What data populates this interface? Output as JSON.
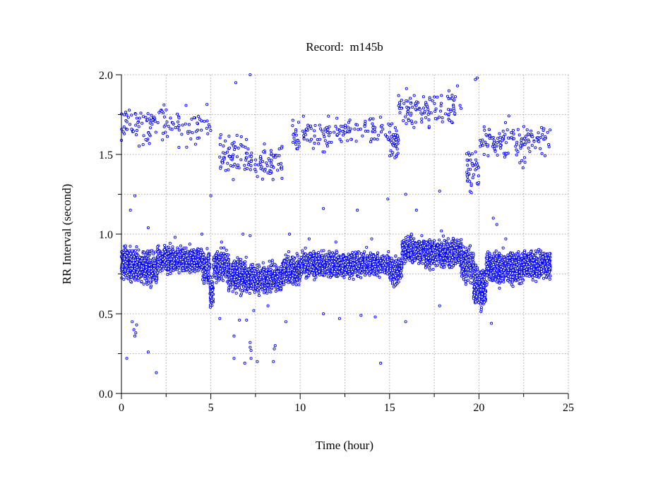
{
  "chart_data": {
    "type": "scatter",
    "title": "Record:  m145b",
    "xlabel": "Time (hour)",
    "ylabel": "RR Interval (second)",
    "xlim": [
      0,
      25
    ],
    "ylim": [
      0,
      2.0
    ],
    "xticks": [
      0,
      5,
      10,
      15,
      20,
      25
    ],
    "xtick_labels": [
      "0",
      "5",
      "10",
      "15",
      "20",
      "25"
    ],
    "yticks": [
      0.0,
      0.5,
      1.0,
      1.5,
      2.0
    ],
    "ytick_labels": [
      "0.0",
      "0.5",
      "1.0",
      "1.5",
      "2.0"
    ],
    "grid": true,
    "marker_color": "#0000ff",
    "dense_bands": [
      {
        "x": [
          0.0,
          0.5
        ],
        "y": 0.82,
        "sd": 0.045,
        "n": 160
      },
      {
        "x": [
          0.5,
          1.5
        ],
        "y": 0.8,
        "sd": 0.045,
        "n": 300
      },
      {
        "x": [
          1.5,
          2.0
        ],
        "y": 0.77,
        "sd": 0.05,
        "n": 140
      },
      {
        "x": [
          2.0,
          4.5
        ],
        "y": 0.84,
        "sd": 0.035,
        "n": 700
      },
      {
        "x": [
          4.5,
          4.95
        ],
        "y": 0.8,
        "sd": 0.045,
        "n": 120
      },
      {
        "x": [
          4.95,
          5.15
        ],
        "y": 0.63,
        "sd": 0.05,
        "n": 60
      },
      {
        "x": [
          5.15,
          6.0
        ],
        "y": 0.8,
        "sd": 0.04,
        "n": 220
      },
      {
        "x": [
          6.0,
          7.0
        ],
        "y": 0.74,
        "sd": 0.05,
        "n": 260
      },
      {
        "x": [
          7.0,
          9.0
        ],
        "y": 0.72,
        "sd": 0.04,
        "n": 500
      },
      {
        "x": [
          9.0,
          10.0
        ],
        "y": 0.77,
        "sd": 0.04,
        "n": 250
      },
      {
        "x": [
          10.0,
          15.0
        ],
        "y": 0.81,
        "sd": 0.035,
        "n": 1200
      },
      {
        "x": [
          15.0,
          15.7
        ],
        "y": 0.77,
        "sd": 0.04,
        "n": 150
      },
      {
        "x": [
          15.7,
          17.0
        ],
        "y": 0.9,
        "sd": 0.035,
        "n": 350
      },
      {
        "x": [
          17.0,
          19.0
        ],
        "y": 0.88,
        "sd": 0.04,
        "n": 600
      },
      {
        "x": [
          19.0,
          19.7
        ],
        "y": 0.81,
        "sd": 0.05,
        "n": 200
      },
      {
        "x": [
          19.7,
          20.4
        ],
        "y": 0.67,
        "sd": 0.06,
        "n": 200
      },
      {
        "x": [
          20.4,
          22.5
        ],
        "y": 0.79,
        "sd": 0.045,
        "n": 600
      },
      {
        "x": [
          22.5,
          24.0
        ],
        "y": 0.81,
        "sd": 0.04,
        "n": 450
      },
      {
        "x": [
          0.0,
          5.0
        ],
        "y": 1.68,
        "sd": 0.06,
        "n": 130
      },
      {
        "x": [
          5.5,
          7.0
        ],
        "y": 1.5,
        "sd": 0.06,
        "n": 60
      },
      {
        "x": [
          7.0,
          9.0
        ],
        "y": 1.45,
        "sd": 0.05,
        "n": 70
      },
      {
        "x": [
          9.5,
          15.0
        ],
        "y": 1.63,
        "sd": 0.05,
        "n": 140
      },
      {
        "x": [
          15.0,
          15.5
        ],
        "y": 1.58,
        "sd": 0.05,
        "n": 40
      },
      {
        "x": [
          15.5,
          19.0
        ],
        "y": 1.78,
        "sd": 0.05,
        "n": 110
      },
      {
        "x": [
          19.3,
          20.0
        ],
        "y": 1.42,
        "sd": 0.07,
        "n": 40
      },
      {
        "x": [
          20.0,
          24.0
        ],
        "y": 1.58,
        "sd": 0.06,
        "n": 130
      }
    ],
    "points": [
      [
        0.3,
        0.22
      ],
      [
        1.5,
        0.26
      ],
      [
        1.95,
        0.13
      ],
      [
        6.3,
        0.22
      ],
      [
        6.9,
        0.19
      ],
      [
        7.2,
        0.32
      ],
      [
        7.2,
        0.29
      ],
      [
        7.25,
        0.27
      ],
      [
        7.25,
        0.22
      ],
      [
        7.6,
        0.2
      ],
      [
        8.5,
        0.2
      ],
      [
        8.55,
        0.28
      ],
      [
        8.6,
        0.3
      ],
      [
        14.5,
        0.19
      ],
      [
        0.6,
        0.45
      ],
      [
        0.7,
        0.4
      ],
      [
        0.8,
        0.38
      ],
      [
        0.75,
        0.36
      ],
      [
        0.85,
        0.43
      ],
      [
        5.5,
        0.47
      ],
      [
        6.3,
        0.36
      ],
      [
        6.6,
        0.46
      ],
      [
        7.0,
        0.46
      ],
      [
        7.4,
        0.52
      ],
      [
        8.2,
        0.55
      ],
      [
        9.2,
        0.45
      ],
      [
        11.3,
        0.5
      ],
      [
        12.2,
        0.47
      ],
      [
        13.4,
        0.49
      ],
      [
        14.2,
        0.48
      ],
      [
        15.9,
        0.45
      ],
      [
        17.8,
        0.55
      ],
      [
        20.7,
        0.44
      ],
      [
        0.5,
        1.15
      ],
      [
        0.75,
        1.24
      ],
      [
        1.5,
        1.04
      ],
      [
        4.5,
        1.0
      ],
      [
        5.0,
        1.24
      ],
      [
        6.8,
        1.0
      ],
      [
        11.3,
        1.16
      ],
      [
        13.2,
        1.15
      ],
      [
        14.9,
        1.22
      ],
      [
        15.9,
        1.25
      ],
      [
        16.5,
        1.15
      ],
      [
        17.8,
        1.27
      ],
      [
        20.8,
        1.1
      ],
      [
        21.0,
        1.06
      ],
      [
        6.4,
        1.95
      ],
      [
        7.2,
        2.0
      ],
      [
        19.8,
        1.97
      ],
      [
        19.9,
        1.98
      ],
      [
        17.9,
        1.87
      ],
      [
        17.5,
        1.86
      ],
      [
        18.8,
        1.93
      ],
      [
        3.0,
        0.98
      ],
      [
        5.6,
        0.95
      ],
      [
        7.2,
        0.99
      ],
      [
        9.4,
        1.0
      ],
      [
        10.5,
        0.97
      ],
      [
        12.0,
        0.95
      ],
      [
        14.0,
        0.97
      ],
      [
        16.8,
        0.99
      ],
      [
        17.9,
        1.02
      ],
      [
        21.5,
        0.97
      ]
    ]
  }
}
